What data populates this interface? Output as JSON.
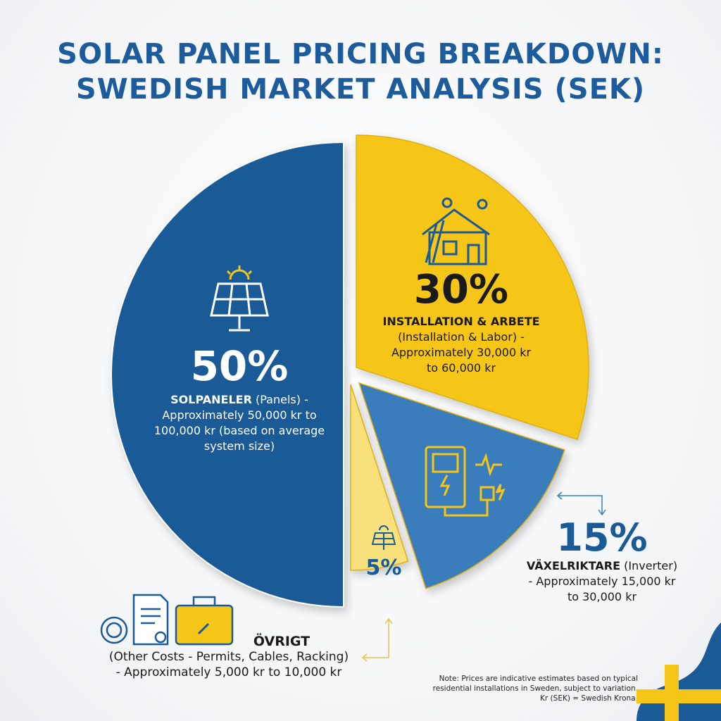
{
  "title_line1": "SOLAR PANEL PRICING BREAKDOWN:",
  "title_line2": "SWEDISH MARKET ANALYSIS (SEK)",
  "chart_data": {
    "type": "pie",
    "title": "SOLAR PANEL PRICING BREAKDOWN: SWEDISH MARKET ANALYSIS (SEK)",
    "slices": [
      {
        "label": "SOLPANELER",
        "sublabel": "(Panels)",
        "value": 50,
        "pct_text": "50%",
        "desc": "- Approximately 50,000 kr to 100,000 kr (based on average system size)",
        "color": "#1a5a96",
        "icon": "solar-panel-icon"
      },
      {
        "label": "INSTALLATION & ARBETE",
        "sublabel": "(Installation & Labor) -",
        "value": 30,
        "pct_text": "30%",
        "desc": "Approximately 30,000 kr to 60,000 kr",
        "color": "#f5c518",
        "icon": "roof-installers-icon"
      },
      {
        "label": "VÄXELRIKTARE",
        "sublabel": "(Inverter)",
        "value": 15,
        "pct_text": "15%",
        "desc": "- Approximately 15,000 kr to 30,000 kr",
        "color": "#3a7dbd",
        "icon": "inverter-icon"
      },
      {
        "label": "ÖVRIGT",
        "sublabel": "(Other Costs - Permits, Cables, Racking)",
        "value": 5,
        "pct_text": "5%",
        "desc": "- Approximately 5,000 kr to 10,000 kr",
        "color": "#f8e07a",
        "icon": "small-solar-panel-icon"
      }
    ]
  },
  "note_line1": "Note: Prices are indicative estimates based on typical",
  "note_line2": "residential installations in Sweden, subject to variation.",
  "note_line3": "Kr (SEK) = Swedish Krona.",
  "colors": {
    "title": "#1d5c9c",
    "flag_blue": "#1a5a96",
    "flag_yellow": "#f5c518"
  }
}
